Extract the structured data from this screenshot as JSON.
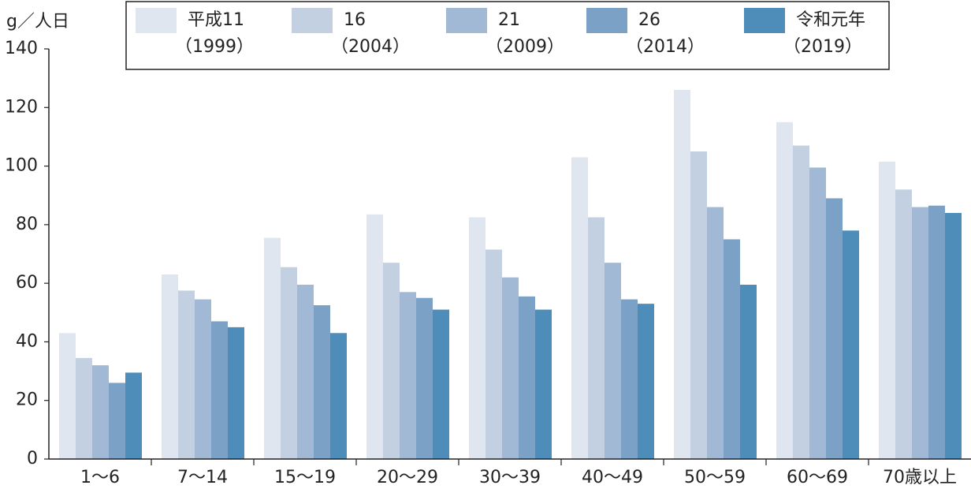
{
  "chart_data": {
    "type": "bar",
    "y_label": "g／人日",
    "categories": [
      "1～6",
      "7～14",
      "15～19",
      "20～29",
      "30～39",
      "40～49",
      "50～59",
      "60～69",
      "70歳以上"
    ],
    "series": [
      {
        "name": "平成11（1999）",
        "color": "#e0e6f0",
        "values": [
          43,
          63,
          75.5,
          83.5,
          82.5,
          103,
          126,
          115,
          101.5
        ]
      },
      {
        "name": "16（2004）",
        "color": "#c3d0e2",
        "values": [
          34.5,
          57.5,
          65.5,
          67,
          71.5,
          82.5,
          105,
          107,
          92
        ]
      },
      {
        "name": "21（2009）",
        "color": "#a2b9d5",
        "values": [
          32,
          54.5,
          59.5,
          57,
          62,
          67,
          86,
          99.5,
          86
        ]
      },
      {
        "name": "26（2014）",
        "color": "#7ba1c6",
        "values": [
          26,
          47,
          52.5,
          55,
          55.5,
          54.5,
          75,
          89,
          86.5
        ]
      },
      {
        "name": "令和元年（2019）",
        "color": "#4e8cb9",
        "values": [
          29.5,
          45,
          43,
          51,
          51,
          53,
          59.5,
          78,
          84
        ]
      }
    ],
    "ylim": [
      0,
      140
    ],
    "yticks": [
      0,
      20,
      40,
      60,
      80,
      100,
      120,
      140
    ],
    "legend": "top"
  }
}
